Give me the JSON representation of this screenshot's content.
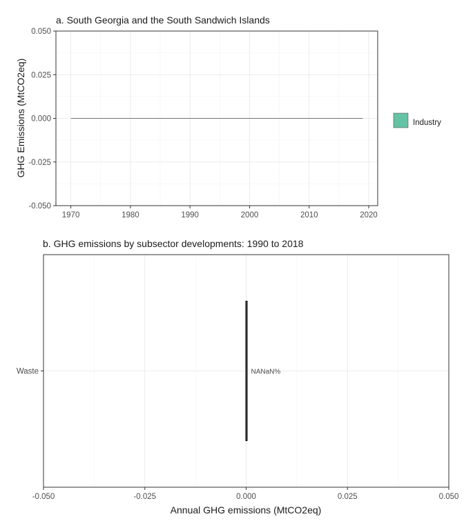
{
  "chart_data": [
    {
      "type": "area",
      "title": "a. South Georgia and the South Sandwich Islands",
      "xlabel": "",
      "ylabel": "GHG Emissions (MtCO2eq)",
      "xlim": [
        1967.5,
        2021.5
      ],
      "ylim": [
        -0.05,
        0.05
      ],
      "x_ticks": [
        1970,
        1980,
        1990,
        2000,
        2010,
        2020
      ],
      "y_ticks": [
        -0.05,
        -0.025,
        0,
        0.025,
        0.05
      ],
      "x_tick_labels": [
        "1970",
        "1980",
        "1990",
        "2000",
        "2010",
        "2020"
      ],
      "y_tick_labels": [
        "-0.050",
        "-0.025",
        "0.000",
        "0.025",
        "0.050"
      ],
      "grid": true,
      "legend_position": "right",
      "series": [
        {
          "name": "Industry",
          "color": "#66c2a5",
          "x": [
            1970,
            2019
          ],
          "values": [
            0,
            0
          ]
        }
      ]
    },
    {
      "type": "bar",
      "orientation": "horizontal",
      "title": "b. GHG emissions by subsector developments: 1990 to 2018",
      "xlabel": "Annual GHG emissions (MtCO2eq)",
      "ylabel": "",
      "xlim": [
        -0.05,
        0.05
      ],
      "x_ticks": [
        -0.05,
        -0.025,
        0,
        0.025,
        0.05
      ],
      "x_tick_labels": [
        "-0.050",
        "-0.025",
        "0.000",
        "0.025",
        "0.050"
      ],
      "grid": true,
      "categories": [
        "Waste"
      ],
      "values": [
        0
      ],
      "data_labels": [
        "NANaN%"
      ]
    }
  ]
}
